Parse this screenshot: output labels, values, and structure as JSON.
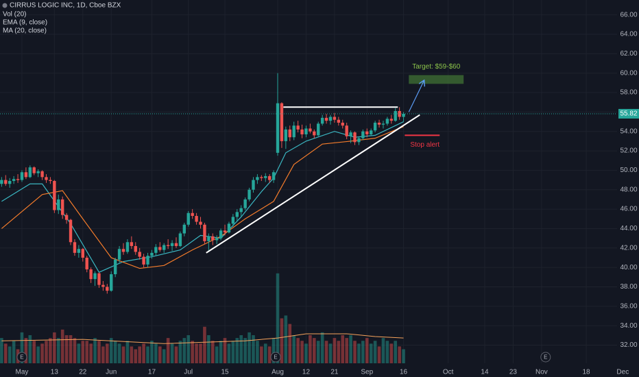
{
  "chart_data": {
    "type": "candlestick",
    "title": "CIRRUS LOGIC INC, 1D, Cboe BZX",
    "x": [
      0,
      1,
      2,
      3,
      4,
      5,
      6,
      7,
      8,
      9,
      10,
      11,
      12,
      13,
      14,
      15,
      16,
      17,
      18,
      19,
      20,
      21,
      22,
      23,
      24,
      25,
      26,
      27,
      28,
      29,
      30,
      31,
      32,
      33,
      34,
      35,
      36,
      37,
      38,
      39,
      40,
      41,
      42,
      43,
      44,
      45,
      46,
      47,
      48,
      49,
      50,
      51,
      52,
      53,
      54,
      55,
      56,
      57,
      58,
      59,
      60,
      61,
      62,
      63,
      64,
      65,
      66,
      67,
      68,
      69,
      70,
      71,
      72,
      73,
      74,
      75,
      76,
      77,
      78,
      79,
      80,
      81,
      82,
      83,
      84,
      85,
      86,
      87,
      88,
      89,
      90,
      91,
      92,
      93,
      94,
      95,
      96,
      97,
      98,
      99
    ],
    "open": [
      48.6,
      49.0,
      48.6,
      48.9,
      49.1,
      49.0,
      49.8,
      49.3,
      50.3,
      49.7,
      49.9,
      49.3,
      49.0,
      48.9,
      45.9,
      47.0,
      45.4,
      44.9,
      42.6,
      41.5,
      41.9,
      41.0,
      39.8,
      38.8,
      39.4,
      38.2,
      38.0,
      37.6,
      39.3,
      40.8,
      41.9,
      41.6,
      42.6,
      42.2,
      41.6,
      41.1,
      40.3,
      41.2,
      41.5,
      42.1,
      41.8,
      42.3,
      42.2,
      42.5,
      42.2,
      43.5,
      44.4,
      45.6,
      45.3,
      44.7,
      44.4,
      42.7,
      43.2,
      42.8,
      43.0,
      43.8,
      43.6,
      44.5,
      45.2,
      45.7,
      46.1,
      47.0,
      48.0,
      49.0,
      49.3,
      49.2,
      49.4,
      49.0,
      51.8,
      56.9,
      53.0,
      54.2,
      53.4,
      54.6,
      54.2,
      53.7,
      54.3,
      54.0,
      53.6,
      54.8,
      55.4,
      55.1,
      55.5,
      55.2,
      54.9,
      54.6,
      53.5,
      53.9,
      52.9,
      53.3,
      54.0,
      53.7,
      54.1,
      54.9,
      54.7,
      54.8,
      55.3,
      55.1,
      56.1,
      55.5
    ],
    "high": [
      49.3,
      49.5,
      49.2,
      49.4,
      49.6,
      50.0,
      50.3,
      50.5,
      50.4,
      50.1,
      50.0,
      49.6,
      49.3,
      49.0,
      47.5,
      47.3,
      45.6,
      45.0,
      42.9,
      42.3,
      42.0,
      41.2,
      40.0,
      39.6,
      39.5,
      38.6,
      38.3,
      39.6,
      41.0,
      42.2,
      42.5,
      42.9,
      43.2,
      42.6,
      42.0,
      41.4,
      41.5,
      41.8,
      42.4,
      42.6,
      42.5,
      42.9,
      42.8,
      43.1,
      43.7,
      44.6,
      45.8,
      46.0,
      45.6,
      45.2,
      44.6,
      43.5,
      43.5,
      43.3,
      44.0,
      44.4,
      44.7,
      45.5,
      46.0,
      46.4,
      47.2,
      48.2,
      49.3,
      49.6,
      49.5,
      49.7,
      49.6,
      50.0,
      60.0,
      57.0,
      54.5,
      54.6,
      55.0,
      55.1,
      54.7,
      54.6,
      54.8,
      54.2,
      55.0,
      55.7,
      55.8,
      55.7,
      55.9,
      55.5,
      55.2,
      54.9,
      54.1,
      54.0,
      53.5,
      54.2,
      54.3,
      54.3,
      55.1,
      55.2,
      55.1,
      55.5,
      55.7,
      56.4,
      56.5,
      56.0
    ],
    "low": [
      48.3,
      48.4,
      48.2,
      48.6,
      48.7,
      48.8,
      49.1,
      49.2,
      49.5,
      49.3,
      49.0,
      48.7,
      48.6,
      45.6,
      45.5,
      45.0,
      44.5,
      42.3,
      41.2,
      41.0,
      40.6,
      39.5,
      38.4,
      38.1,
      37.9,
      37.6,
      37.3,
      37.5,
      39.0,
      40.5,
      41.3,
      41.4,
      41.9,
      41.3,
      40.8,
      40.0,
      40.0,
      40.9,
      41.2,
      41.6,
      41.5,
      41.9,
      41.7,
      42.0,
      42.1,
      43.2,
      44.2,
      45.0,
      44.4,
      44.0,
      42.4,
      41.6,
      42.3,
      42.4,
      42.8,
      43.3,
      43.5,
      44.2,
      44.8,
      45.2,
      45.9,
      46.8,
      47.7,
      48.6,
      48.9,
      48.8,
      48.7,
      48.7,
      51.5,
      52.3,
      52.2,
      53.0,
      53.1,
      53.9,
      53.3,
      53.4,
      53.8,
      53.3,
      53.5,
      54.6,
      54.8,
      54.7,
      54.9,
      54.6,
      54.3,
      53.2,
      52.8,
      52.6,
      52.6,
      53.1,
      53.4,
      53.6,
      53.9,
      54.4,
      54.3,
      54.6,
      54.8,
      55.0,
      55.2,
      55.0
    ],
    "close": [
      49.0,
      48.6,
      48.9,
      49.1,
      49.0,
      49.8,
      49.3,
      50.3,
      49.7,
      49.9,
      49.3,
      49.0,
      48.9,
      45.9,
      47.0,
      45.4,
      44.9,
      42.6,
      41.5,
      41.9,
      41.0,
      39.8,
      38.8,
      39.4,
      38.2,
      38.0,
      37.6,
      39.3,
      40.8,
      41.9,
      41.6,
      42.6,
      42.2,
      41.6,
      41.1,
      40.3,
      41.2,
      41.5,
      42.1,
      41.8,
      42.3,
      42.2,
      42.5,
      42.2,
      43.5,
      44.4,
      45.6,
      45.3,
      44.7,
      44.4,
      42.7,
      43.2,
      42.8,
      43.0,
      43.8,
      43.6,
      44.5,
      45.2,
      45.7,
      46.1,
      47.0,
      48.0,
      49.0,
      49.3,
      49.2,
      49.4,
      49.0,
      49.8,
      56.9,
      53.0,
      54.2,
      53.4,
      54.6,
      54.2,
      53.7,
      54.3,
      54.0,
      53.6,
      54.8,
      55.4,
      55.1,
      55.5,
      55.2,
      54.9,
      54.6,
      53.5,
      53.9,
      52.9,
      53.3,
      54.0,
      53.7,
      54.1,
      54.9,
      54.7,
      54.8,
      55.3,
      55.1,
      56.1,
      55.5,
      55.82
    ],
    "up_color": "#26a69a",
    "down_color": "#ef5350",
    "xlim": [
      -0.4,
      157
    ],
    "xticks": [
      {
        "value": 5,
        "label": "May"
      },
      {
        "value": 13,
        "label": "13"
      },
      {
        "value": 20,
        "label": "22"
      },
      {
        "value": 27,
        "label": "Jun"
      },
      {
        "value": 37,
        "label": "17"
      },
      {
        "value": 46,
        "label": "Jul"
      },
      {
        "value": 55,
        "label": "15"
      },
      {
        "value": 68,
        "label": "Aug"
      },
      {
        "value": 75,
        "label": "12"
      },
      {
        "value": 82,
        "label": "21"
      },
      {
        "value": 90,
        "label": "Sep"
      },
      {
        "value": 99,
        "label": "16"
      },
      {
        "value": 110,
        "label": "Oct"
      },
      {
        "value": 119,
        "label": "14"
      },
      {
        "value": 126,
        "label": "23"
      },
      {
        "value": 133,
        "label": "Nov"
      },
      {
        "value": 144,
        "label": "18"
      },
      {
        "value": 153,
        "label": "Dec"
      }
    ],
    "ylim": [
      30.13,
      67.53
    ],
    "yticks": [
      {
        "value": 66,
        "label": "66.00"
      },
      {
        "value": 64,
        "label": "64.00"
      },
      {
        "value": 62,
        "label": "62.00"
      },
      {
        "value": 60,
        "label": "60.00"
      },
      {
        "value": 58,
        "label": "58.00"
      },
      {
        "value": 56,
        "label": "56.00"
      },
      {
        "value": 54,
        "label": "54.00"
      },
      {
        "value": 52,
        "label": "52.00"
      },
      {
        "value": 50,
        "label": "50.00"
      },
      {
        "value": 48,
        "label": "48.00"
      },
      {
        "value": 46,
        "label": "46.00"
      },
      {
        "value": 44,
        "label": "44.00"
      },
      {
        "value": 42,
        "label": "42.00"
      },
      {
        "value": 40,
        "label": "40.00"
      },
      {
        "value": 38,
        "label": "38.00"
      },
      {
        "value": 36,
        "label": "36.00"
      },
      {
        "value": 34,
        "label": "34.00"
      },
      {
        "value": 32,
        "label": "32.00"
      }
    ],
    "grid": true,
    "last_price": 55.82,
    "volume": {
      "name": "Vol (20)",
      "values": [
        0.9,
        0.7,
        0.6,
        0.8,
        0.5,
        1.1,
        0.9,
        1.0,
        0.8,
        0.6,
        0.7,
        0.8,
        0.9,
        1.1,
        0.9,
        1.2,
        1.0,
        1.0,
        0.9,
        0.7,
        0.8,
        0.8,
        0.7,
        0.9,
        0.8,
        0.6,
        0.7,
        0.9,
        0.8,
        0.7,
        0.6,
        0.8,
        0.6,
        0.5,
        0.6,
        0.7,
        0.6,
        0.8,
        0.7,
        0.6,
        0.5,
        0.9,
        0.7,
        0.6,
        0.8,
        0.9,
        1.0,
        0.8,
        0.7,
        0.7,
        1.3,
        1.0,
        0.8,
        0.6,
        0.8,
        0.9,
        0.7,
        0.8,
        0.9,
        1.0,
        0.9,
        1.1,
        1.0,
        0.8,
        0.6,
        0.7,
        0.6,
        0.9,
        3.2,
        1.6,
        1.7,
        1.4,
        1.0,
        0.9,
        0.8,
        0.7,
        1.0,
        0.9,
        0.8,
        1.1,
        0.8,
        0.7,
        0.9,
        0.8,
        1.0,
        0.9,
        1.0,
        0.8,
        0.7,
        0.8,
        0.9,
        0.7,
        0.8,
        0.6,
        0.9,
        0.8,
        0.7,
        0.8,
        0.6,
        0.5
      ],
      "ylim": [
        0,
        4
      ],
      "ma_x": [
        0,
        20,
        40,
        60,
        68,
        75,
        85,
        92,
        99
      ],
      "ma_values": [
        0.8,
        0.85,
        0.7,
        0.8,
        0.9,
        1.05,
        1.05,
        0.95,
        0.9
      ],
      "ma_color": "#f7a35c"
    },
    "overlays": [
      {
        "name": "EMA (9, close)",
        "color": "#3bb8c3",
        "x": [
          0,
          7,
          10,
          17,
          24,
          30,
          37,
          44,
          49,
          54,
          59,
          64,
          67,
          70,
          75,
          82,
          87,
          92,
          99
        ],
        "values": [
          46.8,
          48.6,
          48.6,
          44.5,
          39.5,
          40.6,
          41.1,
          41.8,
          43.3,
          43.0,
          45.2,
          47.8,
          49.2,
          51.8,
          53.0,
          54.0,
          53.4,
          53.6,
          55.0
        ]
      },
      {
        "name": "MA (20, close)",
        "color": "#f57c2b",
        "x": [
          0,
          10,
          15,
          20,
          27,
          34,
          40,
          47,
          54,
          60,
          67,
          72,
          79,
          86,
          92,
          99
        ],
        "values": [
          44.0,
          47.5,
          47.9,
          45.0,
          41.0,
          39.9,
          40.2,
          41.8,
          43.2,
          45.0,
          46.8,
          50.6,
          52.7,
          53.0,
          53.3,
          54.5
        ]
      }
    ],
    "annotations": {
      "lines": [
        {
          "x": [
            69.4,
            97.6
          ],
          "y": [
            56.5,
            56.5
          ],
          "color": "#ffffff"
        },
        {
          "x": [
            50.4,
            103
          ],
          "y": [
            41.5,
            55.7
          ],
          "color": "#ffffff"
        }
      ],
      "arrow": {
        "x": [
          100.3,
          104
        ],
        "y": [
          56.0,
          59.2
        ],
        "color": "#5b9cf6"
      },
      "target": {
        "label": "Target: $59-$60",
        "x": [
          100.3,
          113.8
        ],
        "y": [
          58.9,
          59.8
        ],
        "color": "#3d6b33",
        "text_color": "#8bc34a"
      },
      "stop": {
        "label": "Stop alert",
        "x": [
          99.3,
          107.9
        ],
        "y": 53.6,
        "color": "#f23645"
      },
      "earnings": [
        {
          "x": 5,
          "label": "E"
        },
        {
          "x": 67.5,
          "label": "E"
        },
        {
          "x": 134,
          "label": "E"
        }
      ]
    }
  }
}
